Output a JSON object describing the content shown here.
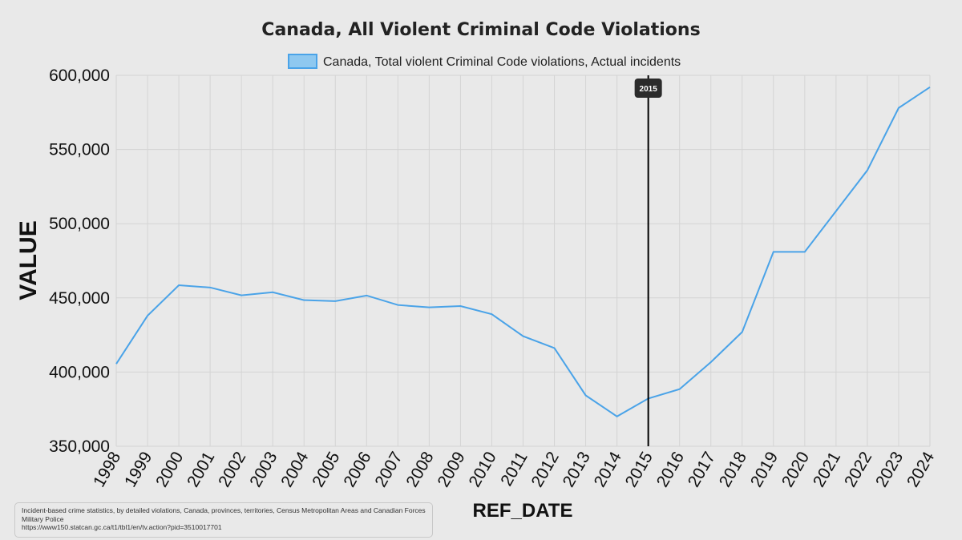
{
  "colors": {
    "background": "#e9e9e9",
    "grid": "#d4d4d4",
    "line": "#4aa3e8",
    "legend_fill": "#8ec8f0",
    "marker_line": "#000000",
    "tooltip_bg": "#2b2b2b"
  },
  "source": {
    "line1": "Incident-based crime statistics, by detailed violations, Canada, provinces, territories, Census Metropolitan Areas and Canadian Forces Military Police",
    "line2": "https://www150.statcan.gc.ca/t1/tbl1/en/tv.action?pid=3510017701"
  },
  "chart_data": {
    "type": "line",
    "title": "Canada, All Violent Criminal Code Violations",
    "xlabel": "REF_DATE",
    "ylabel": "VALUE",
    "legend_position": "top-center",
    "grid": true,
    "ylim": [
      350000,
      600000
    ],
    "yticks": [
      350000,
      400000,
      450000,
      500000,
      550000,
      600000
    ],
    "ytick_labels": [
      "350,000",
      "400,000",
      "450,000",
      "500,000",
      "550,000",
      "600,000"
    ],
    "categories": [
      "1998",
      "1999",
      "2000",
      "2001",
      "2002",
      "2003",
      "2004",
      "2005",
      "2006",
      "2007",
      "2008",
      "2009",
      "2010",
      "2011",
      "2012",
      "2013",
      "2014",
      "2015",
      "2016",
      "2017",
      "2018",
      "2019",
      "2020",
      "2021",
      "2022",
      "2023",
      "2024"
    ],
    "series": [
      {
        "name": "Canada, Total violent Criminal Code violations, Actual incidents",
        "values": [
          405500,
          438000,
          458500,
          457000,
          451700,
          453800,
          448500,
          447800,
          451600,
          445200,
          443600,
          444500,
          439000,
          424200,
          416200,
          384300,
          370100,
          382200,
          388500,
          406700,
          427000,
          481000,
          481000,
          508500,
          536000,
          578000,
          592000
        ]
      }
    ],
    "highlight": {
      "category": "2015",
      "label": "2015"
    }
  }
}
